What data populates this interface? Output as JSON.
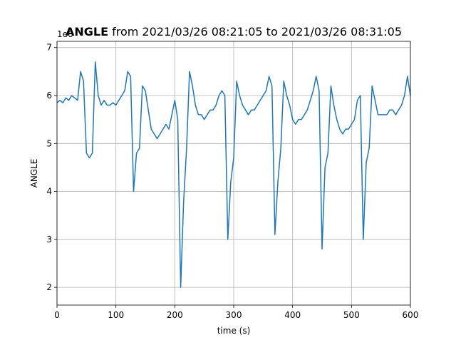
{
  "chart_data": {
    "type": "line",
    "title_signal": "ANGLE",
    "title_range": "from 2021/03/26 08:21:05 to 2021/03/26 08:31:05",
    "xlabel": "time (s)",
    "ylabel": "ANGLE",
    "y_offset_label": "1e6",
    "x": [
      0,
      5,
      10,
      15,
      20,
      25,
      30,
      35,
      40,
      45,
      50,
      55,
      60,
      65,
      70,
      75,
      80,
      85,
      90,
      95,
      100,
      105,
      110,
      115,
      120,
      125,
      130,
      135,
      140,
      145,
      150,
      155,
      160,
      165,
      170,
      175,
      180,
      185,
      190,
      195,
      200,
      205,
      210,
      215,
      220,
      225,
      230,
      235,
      240,
      245,
      250,
      255,
      260,
      265,
      270,
      275,
      280,
      285,
      290,
      295,
      300,
      305,
      310,
      315,
      320,
      325,
      330,
      335,
      340,
      345,
      350,
      355,
      360,
      365,
      370,
      375,
      380,
      385,
      390,
      395,
      400,
      405,
      410,
      415,
      420,
      425,
      430,
      435,
      440,
      445,
      450,
      455,
      460,
      465,
      470,
      475,
      480,
      485,
      490,
      495,
      500,
      505,
      510,
      515,
      520,
      525,
      530,
      535,
      540,
      545,
      550,
      555,
      560,
      565,
      570,
      575,
      580,
      585,
      590,
      595,
      600
    ],
    "series": [
      {
        "color": "#1f77b4",
        "values": [
          5.85,
          5.9,
          5.85,
          5.95,
          5.9,
          6.0,
          5.95,
          5.9,
          6.5,
          6.3,
          4.8,
          4.7,
          4.8,
          6.7,
          6.0,
          5.8,
          5.9,
          5.8,
          5.8,
          5.85,
          5.8,
          5.9,
          6.0,
          6.1,
          6.5,
          6.4,
          4.0,
          4.8,
          4.9,
          6.2,
          6.1,
          5.7,
          5.3,
          5.2,
          5.1,
          5.2,
          5.3,
          5.4,
          5.3,
          5.6,
          5.9,
          5.5,
          2.0,
          3.8,
          4.9,
          6.5,
          6.2,
          5.8,
          5.6,
          5.6,
          5.5,
          5.6,
          5.7,
          5.7,
          5.8,
          6.0,
          6.1,
          6.0,
          3.0,
          4.2,
          4.7,
          6.3,
          6.0,
          5.8,
          5.7,
          5.6,
          5.7,
          5.7,
          5.8,
          5.9,
          6.0,
          6.1,
          6.4,
          6.2,
          3.1,
          4.2,
          4.9,
          6.3,
          6.0,
          5.8,
          5.5,
          5.4,
          5.5,
          5.5,
          5.6,
          5.7,
          5.9,
          6.1,
          6.4,
          6.1,
          2.8,
          4.5,
          4.8,
          6.2,
          5.8,
          5.5,
          5.3,
          5.2,
          5.3,
          5.3,
          5.4,
          5.5,
          5.9,
          6.0,
          3.0,
          4.6,
          4.9,
          6.2,
          5.9,
          5.6,
          5.6,
          5.6,
          5.6,
          5.7,
          5.7,
          5.6,
          5.7,
          5.8,
          6.0,
          6.4,
          6.0
        ]
      }
    ],
    "xlim": [
      0,
      600
    ],
    "xticks": [
      0,
      100,
      200,
      300,
      400,
      500,
      600
    ],
    "ylim": [
      1.63,
      7.13
    ],
    "yticks": [
      2,
      3,
      4,
      5,
      6,
      7
    ],
    "grid": true
  }
}
